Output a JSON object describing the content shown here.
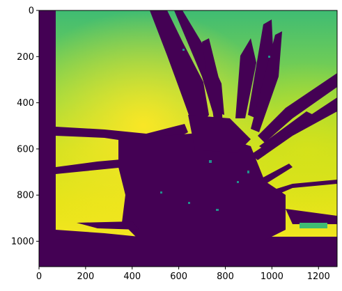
{
  "chart_data": {
    "type": "heatmap",
    "title": "",
    "xlabel": "",
    "ylabel": "",
    "xlim": [
      0,
      1280
    ],
    "ylim": [
      1110,
      0
    ],
    "y_axis_inverted": true,
    "colormap": "viridis",
    "colormap_stops": [
      "#440154",
      "#3b528b",
      "#21918c",
      "#5ec962",
      "#fde725"
    ],
    "x_ticks": [
      "0",
      "200",
      "400",
      "600",
      "800",
      "1000",
      "1200"
    ],
    "y_ticks": [
      "0",
      "200",
      "400",
      "600",
      "800",
      "1000"
    ],
    "x_tick_values": [
      0,
      200,
      400,
      600,
      800,
      1000,
      1200
    ],
    "y_tick_values": [
      0,
      200,
      400,
      600,
      800,
      1000
    ],
    "image_content": "depth-map style image: dark purple plant silhouette with spiky leaves radiating from a base around x=750, y=900; green to yellow gradient background, brightest yellow near the lower-left and mid-left",
    "grid": false,
    "legend": "none"
  }
}
